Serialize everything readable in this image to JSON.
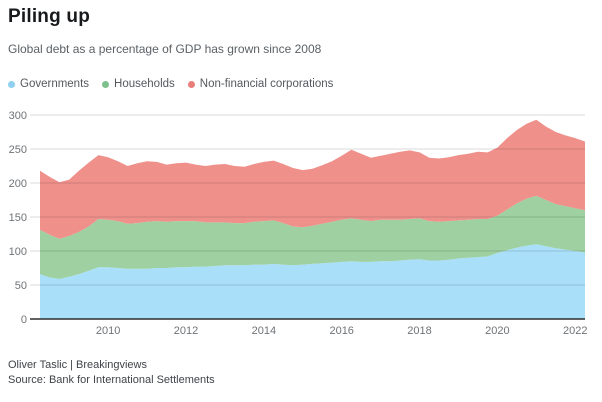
{
  "chart_data": {
    "type": "area",
    "stacked": true,
    "title": "Piling up",
    "subtitle": "Global debt as a percentage of GDP has grown since 2008",
    "xlabel": "",
    "ylabel": "",
    "xlim": [
      2008.25,
      2022.25
    ],
    "ylim": [
      0,
      300
    ],
    "x_ticks": [
      2010,
      2012,
      2014,
      2016,
      2018,
      2020,
      2022
    ],
    "y_ticks": [
      0,
      50,
      100,
      150,
      200,
      250,
      300
    ],
    "grid": true,
    "legend_position": "top",
    "x": [
      2008.25,
      2008.5,
      2008.75,
      2009.0,
      2009.25,
      2009.5,
      2009.75,
      2010.0,
      2010.25,
      2010.5,
      2010.75,
      2011.0,
      2011.25,
      2011.5,
      2011.75,
      2012.0,
      2012.25,
      2012.5,
      2012.75,
      2013.0,
      2013.25,
      2013.5,
      2013.75,
      2014.0,
      2014.25,
      2014.5,
      2014.75,
      2015.0,
      2015.25,
      2015.5,
      2015.75,
      2016.0,
      2016.25,
      2016.5,
      2016.75,
      2017.0,
      2017.25,
      2017.5,
      2017.75,
      2018.0,
      2018.25,
      2018.5,
      2018.75,
      2019.0,
      2019.25,
      2019.5,
      2019.75,
      2020.0,
      2020.25,
      2020.5,
      2020.75,
      2021.0,
      2021.25,
      2021.5,
      2021.75,
      2022.0,
      2022.25
    ],
    "series": [
      {
        "name": "Governments",
        "color": "#a9dff8",
        "dot_color": "#8ed0ee",
        "values": [
          66,
          61,
          59,
          62,
          66,
          71,
          76,
          76,
          75,
          74,
          74,
          74,
          75,
          75,
          76,
          76,
          77,
          77,
          78,
          79,
          79,
          79,
          80,
          80,
          81,
          80,
          79,
          80,
          81,
          82,
          83,
          84,
          85,
          84,
          84,
          85,
          85,
          86,
          87,
          88,
          86,
          86,
          87,
          89,
          90,
          91,
          92,
          97,
          101,
          105,
          108,
          110,
          107,
          104,
          102,
          100,
          98
        ]
      },
      {
        "name": "Households",
        "color": "#9ed0a1",
        "dot_color": "#7ec08d",
        "values": [
          65,
          63,
          59,
          60,
          62,
          65,
          71,
          70,
          69,
          66,
          67,
          69,
          69,
          68,
          68,
          68,
          67,
          65,
          64,
          63,
          62,
          62,
          63,
          64,
          64,
          61,
          57,
          55,
          56,
          58,
          60,
          62,
          63,
          62,
          60,
          61,
          61,
          60,
          60,
          60,
          58,
          57,
          57,
          56,
          56,
          56,
          55,
          55,
          60,
          65,
          69,
          71,
          68,
          65,
          64,
          63,
          62
        ]
      },
      {
        "name": "Non-financial corporations",
        "color": "#ef908b",
        "dot_color": "#e97d79",
        "values": [
          87,
          85,
          83,
          83,
          90,
          94,
          94,
          92,
          88,
          85,
          88,
          89,
          87,
          84,
          85,
          86,
          83,
          83,
          85,
          86,
          84,
          83,
          85,
          87,
          88,
          87,
          86,
          84,
          84,
          86,
          89,
          94,
          101,
          97,
          93,
          94,
          97,
          100,
          101,
          97,
          93,
          93,
          94,
          96,
          97,
          99,
          98,
          100,
          105,
          108,
          110,
          112,
          108,
          106,
          104,
          103,
          101
        ]
      }
    ]
  },
  "footer": {
    "byline": "Oliver Taslic | Breakingviews",
    "source": "Source: Bank for International Settlements"
  }
}
